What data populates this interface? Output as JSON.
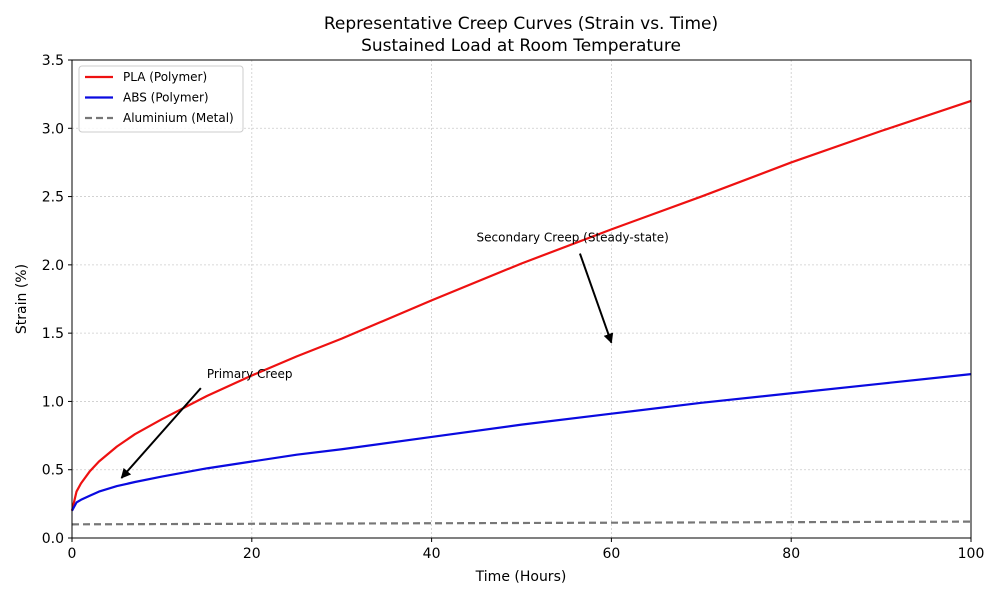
{
  "chart_data": {
    "type": "line",
    "title": "Representative Creep Curves (Strain vs. Time)",
    "subtitle": "Sustained Load at Room Temperature",
    "xlabel": "Time (Hours)",
    "ylabel": "Strain (%)",
    "xlim": [
      0,
      100
    ],
    "ylim": [
      0,
      3.5
    ],
    "xticks": [
      0,
      20,
      40,
      60,
      80,
      100
    ],
    "xtick_labels": [
      "0",
      "20",
      "40",
      "60",
      "80",
      "100"
    ],
    "yticks": [
      0,
      0.5,
      1.0,
      1.5,
      2.0,
      2.5,
      3.0,
      3.5
    ],
    "ytick_labels": [
      "0.0",
      "0.5",
      "1.0",
      "1.5",
      "2.0",
      "2.5",
      "3.0",
      "3.5"
    ],
    "grid": true,
    "legend_position": "top-left",
    "series": [
      {
        "name": "PLA (Polymer)",
        "color": "#ee1111",
        "style": "solid",
        "x": [
          0,
          0.5,
          1,
          2,
          3,
          5,
          7,
          10,
          15,
          20,
          25,
          30,
          40,
          50,
          60,
          70,
          80,
          90,
          100
        ],
        "y": [
          0.2,
          0.34,
          0.4,
          0.49,
          0.56,
          0.67,
          0.76,
          0.87,
          1.04,
          1.19,
          1.33,
          1.46,
          1.74,
          2.01,
          2.26,
          2.5,
          2.75,
          2.98,
          3.2
        ]
      },
      {
        "name": "ABS (Polymer)",
        "color": "#0a0ae0",
        "style": "solid",
        "x": [
          0,
          0.5,
          1,
          2,
          3,
          5,
          7,
          10,
          15,
          20,
          25,
          30,
          40,
          50,
          60,
          70,
          80,
          90,
          100
        ],
        "y": [
          0.2,
          0.26,
          0.28,
          0.31,
          0.34,
          0.38,
          0.41,
          0.45,
          0.51,
          0.56,
          0.61,
          0.65,
          0.74,
          0.83,
          0.91,
          0.99,
          1.06,
          1.13,
          1.2
        ]
      },
      {
        "name": "Aluminium (Metal)",
        "color": "#777777",
        "style": "dashed",
        "x": [
          0,
          25,
          50,
          75,
          100
        ],
        "y": [
          0.1,
          0.105,
          0.11,
          0.115,
          0.12
        ]
      }
    ],
    "annotations": [
      {
        "text": "Primary Creep",
        "text_x": 15,
        "text_y": 1.2,
        "arrow_x": 5.5,
        "arrow_y": 0.44
      },
      {
        "text": "Secondary Creep (Steady-state)",
        "text_x": 45,
        "text_y": 2.2,
        "arrow_x": 60,
        "arrow_y": 1.43
      }
    ]
  }
}
